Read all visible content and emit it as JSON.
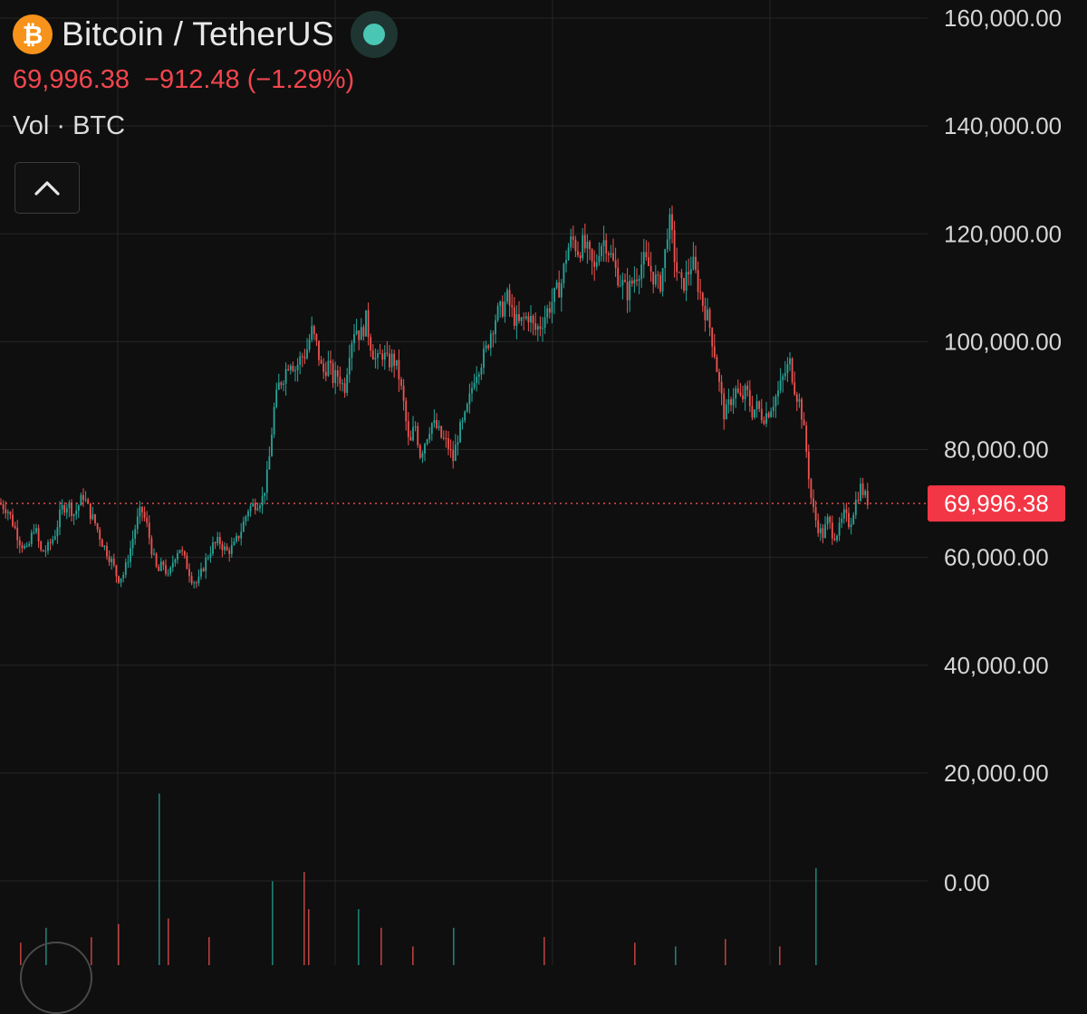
{
  "header": {
    "title": "Bitcoin / TetherUS",
    "icon": "bitcoin-icon",
    "icon_glyph": "₿",
    "status_icon": "market-status-dot-icon",
    "last_price": "69,996.38",
    "change": "−912.48",
    "change_percent": "(−1.29%)",
    "volume_label": "Vol · BTC",
    "collapse_icon": "chevron-up-icon"
  },
  "colors": {
    "background": "#0f0f0f",
    "up": "#26a69a",
    "down": "#ef5350",
    "grid": "#262626",
    "price_label": "#f23645",
    "bitcoin_orange": "#f7931a",
    "status": "#4ac6b4"
  },
  "chart_data": {
    "type": "candlestick",
    "ylim": [
      0,
      160000
    ],
    "y_ticks": [
      "160,000.00",
      "140,000.00",
      "120,000.00",
      "100,000.00",
      "80,000.00",
      "60,000.00",
      "40,000.00",
      "20,000.00"
    ],
    "last_price": 69996.38,
    "last_price_label": "69,996.38",
    "volume_axis_label": "0.00",
    "grid": true,
    "close_path": [
      [
        0,
        70000
      ],
      [
        8,
        69000
      ],
      [
        15,
        66000
      ],
      [
        22,
        63000
      ],
      [
        30,
        61000
      ],
      [
        38,
        66000
      ],
      [
        45,
        61000
      ],
      [
        52,
        61500
      ],
      [
        60,
        64000
      ],
      [
        68,
        69000
      ],
      [
        75,
        70000
      ],
      [
        82,
        68000
      ],
      [
        92,
        71500
      ],
      [
        100,
        68000
      ],
      [
        106,
        66000
      ],
      [
        112,
        63000
      ],
      [
        118,
        61000
      ],
      [
        124,
        59000
      ],
      [
        130,
        56000
      ],
      [
        137,
        57000
      ],
      [
        143,
        61000
      ],
      [
        150,
        66000
      ],
      [
        156,
        69000
      ],
      [
        162,
        66000
      ],
      [
        168,
        61000
      ],
      [
        174,
        57000
      ],
      [
        180,
        59000
      ],
      [
        186,
        56000
      ],
      [
        192,
        60000
      ],
      [
        198,
        62000
      ],
      [
        205,
        59000
      ],
      [
        212,
        56000
      ],
      [
        218,
        55000
      ],
      [
        226,
        59000
      ],
      [
        234,
        62000
      ],
      [
        242,
        63000
      ],
      [
        250,
        61000
      ],
      [
        258,
        62000
      ],
      [
        266,
        65000
      ],
      [
        274,
        69000
      ],
      [
        282,
        70000
      ],
      [
        290,
        71000
      ],
      [
        296,
        76000
      ],
      [
        302,
        87000
      ],
      [
        308,
        92000
      ],
      [
        314,
        94000
      ],
      [
        320,
        97000
      ],
      [
        326,
        95000
      ],
      [
        332,
        97000
      ],
      [
        338,
        98000
      ],
      [
        344,
        102000
      ],
      [
        350,
        99000
      ],
      [
        356,
        94000
      ],
      [
        362,
        96000
      ],
      [
        368,
        93000
      ],
      [
        374,
        94000
      ],
      [
        380,
        91000
      ],
      [
        386,
        99000
      ],
      [
        392,
        103000
      ],
      [
        398,
        101000
      ],
      [
        404,
        104000
      ],
      [
        410,
        99000
      ],
      [
        416,
        96000
      ],
      [
        422,
        98000
      ],
      [
        428,
        96000
      ],
      [
        434,
        97000
      ],
      [
        440,
        94000
      ],
      [
        446,
        88000
      ],
      [
        452,
        80000
      ],
      [
        458,
        85000
      ],
      [
        464,
        79000
      ],
      [
        470,
        82000
      ],
      [
        476,
        85000
      ],
      [
        482,
        84000
      ],
      [
        488,
        82000
      ],
      [
        494,
        81000
      ],
      [
        500,
        78000
      ],
      [
        506,
        83000
      ],
      [
        512,
        85000
      ],
      [
        518,
        89000
      ],
      [
        524,
        94000
      ],
      [
        530,
        96000
      ],
      [
        536,
        98000
      ],
      [
        542,
        102000
      ],
      [
        548,
        105000
      ],
      [
        554,
        106000
      ],
      [
        560,
        108000
      ],
      [
        566,
        105000
      ],
      [
        572,
        103000
      ],
      [
        578,
        104000
      ],
      [
        584,
        105000
      ],
      [
        590,
        102000
      ],
      [
        596,
        103000
      ],
      [
        602,
        105000
      ],
      [
        608,
        107000
      ],
      [
        614,
        109000
      ],
      [
        620,
        111000
      ],
      [
        626,
        117000
      ],
      [
        632,
        119000
      ],
      [
        638,
        117000
      ],
      [
        644,
        118000
      ],
      [
        650,
        116000
      ],
      [
        656,
        113000
      ],
      [
        662,
        118000
      ],
      [
        668,
        119000
      ],
      [
        674,
        116000
      ],
      [
        680,
        113000
      ],
      [
        686,
        111000
      ],
      [
        692,
        109000
      ],
      [
        698,
        111000
      ],
      [
        704,
        113000
      ],
      [
        710,
        115000
      ],
      [
        716,
        114000
      ],
      [
        722,
        112000
      ],
      [
        728,
        110000
      ],
      [
        734,
        116000
      ],
      [
        738,
        123000
      ],
      [
        742,
        119000
      ],
      [
        746,
        114000
      ],
      [
        752,
        110000
      ],
      [
        758,
        112000
      ],
      [
        764,
        115000
      ],
      [
        770,
        111000
      ],
      [
        776,
        107000
      ],
      [
        782,
        104000
      ],
      [
        788,
        99000
      ],
      [
        794,
        92000
      ],
      [
        800,
        86000
      ],
      [
        806,
        89000
      ],
      [
        812,
        91000
      ],
      [
        818,
        89000
      ],
      [
        824,
        91000
      ],
      [
        830,
        87000
      ],
      [
        836,
        88000
      ],
      [
        842,
        86000
      ],
      [
        848,
        87000
      ],
      [
        854,
        89000
      ],
      [
        860,
        91000
      ],
      [
        866,
        94000
      ],
      [
        872,
        96000
      ],
      [
        878,
        91000
      ],
      [
        884,
        88000
      ],
      [
        890,
        80000
      ],
      [
        896,
        70000
      ],
      [
        902,
        66000
      ],
      [
        908,
        64000
      ],
      [
        914,
        67000
      ],
      [
        920,
        64000
      ],
      [
        926,
        65000
      ],
      [
        932,
        68000
      ],
      [
        938,
        66000
      ],
      [
        944,
        70000
      ],
      [
        950,
        73000
      ],
      [
        956,
        71000
      ],
      [
        960,
        69996
      ]
    ],
    "volume_spikes": [
      [
        22,
        0.12
      ],
      [
        50,
        0.2
      ],
      [
        100,
        0.15
      ],
      [
        130,
        0.22
      ],
      [
        175,
        0.92
      ],
      [
        185,
        0.25
      ],
      [
        230,
        0.15
      ],
      [
        300,
        0.45
      ],
      [
        335,
        0.5
      ],
      [
        340,
        0.3
      ],
      [
        395,
        0.3
      ],
      [
        420,
        0.2
      ],
      [
        455,
        0.1
      ],
      [
        500,
        0.2
      ],
      [
        600,
        0.15
      ],
      [
        700,
        0.12
      ],
      [
        745,
        0.1
      ],
      [
        800,
        0.14
      ],
      [
        860,
        0.1
      ],
      [
        900,
        0.52
      ]
    ]
  }
}
